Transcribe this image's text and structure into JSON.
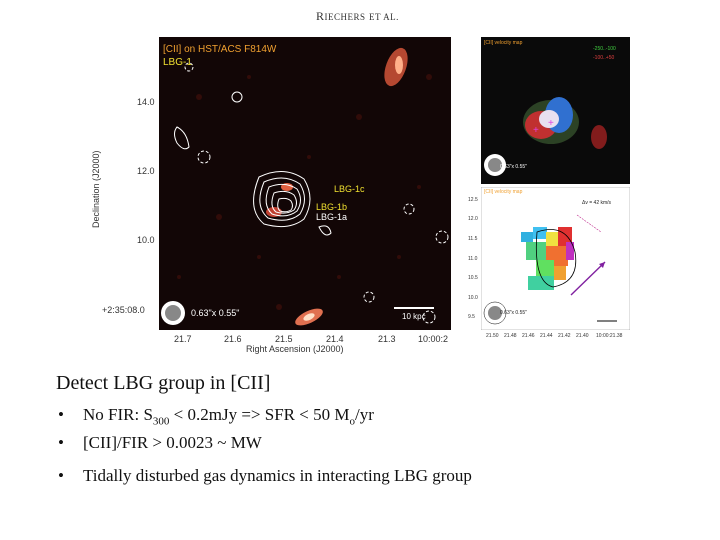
{
  "header": {
    "prefix": "R",
    "author_rest": "IECHERS",
    "et_al": "ET AL."
  },
  "main_panel": {
    "title_line1": "[CII] on HST/ACS F814W",
    "title_line2": "LBG-1",
    "labels": {
      "lbg1c": "LBG-1c",
      "lbg1b": "LBG-1b",
      "lbg1a": "LBG-1a"
    },
    "beam": "0.63\"x 0.55\"",
    "scalebar": "10 kpc",
    "y_axis_title": "Declination (J2000)",
    "y_ticks": [
      "14.0",
      "12.0",
      "10.0",
      "+2:35:08.0"
    ],
    "x_ticks": [
      "21.7",
      "21.6",
      "21.5",
      "21.4",
      "21.3",
      "10:00:2"
    ],
    "x_axis_title": "Right Ascension (J2000)"
  },
  "velocity_panel": {
    "title": "[CII] velocity map",
    "legend": [
      "-250..-100",
      "-100..+50"
    ],
    "beam": "0.63\"x 0.55\""
  },
  "moment_panel": {
    "title": "[CII] velocity map",
    "range_label": "Δv = 42 km/s",
    "beam": "0.63\"x 0.55\"",
    "y_ticks": [
      "12.5",
      "12.0",
      "11.5",
      "11.0",
      "10.5",
      "10.0",
      "9.5"
    ],
    "x_ticks": [
      "21.50",
      "21.48",
      "21.46",
      "21.44",
      "21.42",
      "21.40",
      "10:00:21.38"
    ]
  },
  "slide": {
    "title": "Detect LBG group in [CII]",
    "b1_pre": "No FIR: S",
    "b1_sub": "300",
    "b1_mid": " < 0.2mJy => SFR < 50 M",
    "b1_sub2": "o",
    "b1_post": "/yr",
    "b2": "[CII]/FIR > 0.0023 ~ MW",
    "b3": "Tidally disturbed gas dynamics in interacting LBG group"
  }
}
